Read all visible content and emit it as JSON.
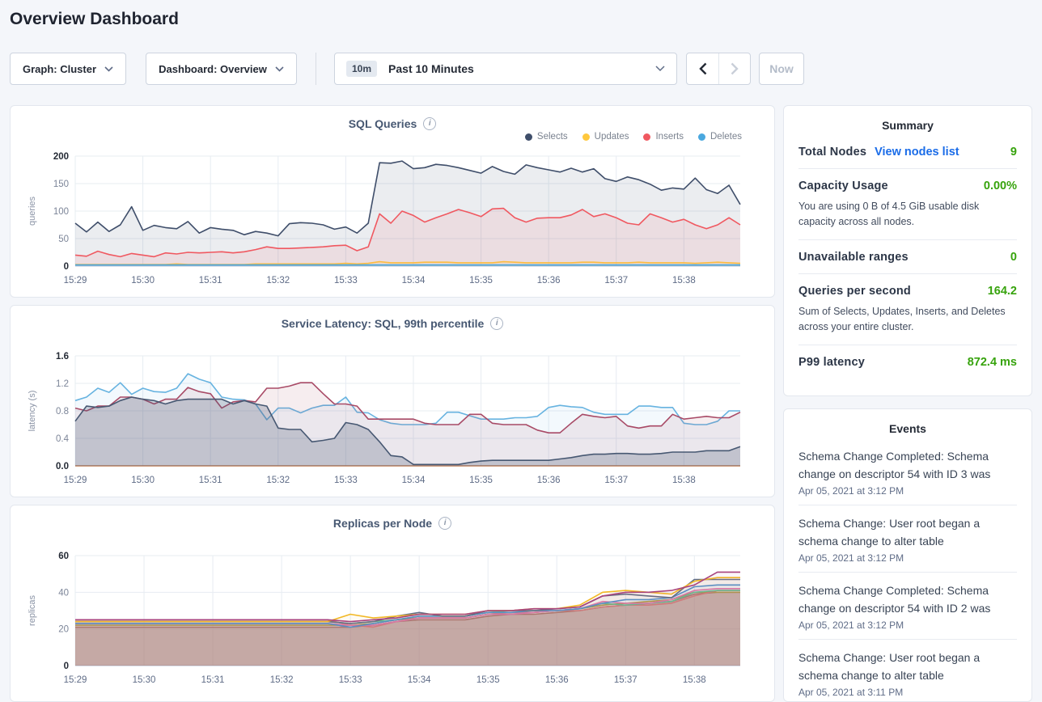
{
  "page_title": "Overview Dashboard",
  "controls": {
    "graph_dropdown": "Graph: Cluster",
    "dashboard_dropdown": "Dashboard: Overview",
    "time_badge": "10m",
    "time_label": "Past 10 Minutes",
    "now_label": "Now"
  },
  "summary": {
    "title": "Summary",
    "rows": {
      "total_nodes": {
        "label": "Total Nodes",
        "link": "View nodes list",
        "value": "9"
      },
      "capacity": {
        "label": "Capacity Usage",
        "value": "0.00%",
        "desc": "You are using 0 B of 4.5 GiB usable disk capacity across all nodes."
      },
      "unavailable": {
        "label": "Unavailable ranges",
        "value": "0"
      },
      "qps": {
        "label": "Queries per second",
        "value": "164.2",
        "desc": "Sum of Selects, Updates, Inserts, and Deletes across your entire cluster."
      },
      "p99": {
        "label": "P99 latency",
        "value": "872.4 ms"
      }
    }
  },
  "events": {
    "title": "Events",
    "items": [
      {
        "text": "Schema Change Completed: Schema change on descriptor 54 with ID 3 was",
        "time": "Apr 05, 2021 at 3:12 PM"
      },
      {
        "text": "Schema Change: User root began a schema change to alter table",
        "time": "Apr 05, 2021 at 3:12 PM"
      },
      {
        "text": "Schema Change Completed: Schema change on descriptor 54 with ID 2 was",
        "time": "Apr 05, 2021 at 3:12 PM"
      },
      {
        "text": "Schema Change: User root began a schema change to alter table",
        "time": "Apr 05, 2021 at 3:11 PM"
      }
    ]
  },
  "chart_data": [
    {
      "type": "area",
      "title": "SQL Queries",
      "ylabel": "queries",
      "ylim": [
        0,
        200
      ],
      "yticks": [
        "0",
        "50",
        "100",
        "150",
        "200"
      ],
      "xticks": [
        "15:29",
        "15:30",
        "15:31",
        "15:32",
        "15:33",
        "15:34",
        "15:35",
        "15:36",
        "15:37",
        "15:38"
      ],
      "tick_every": 6,
      "n": 60,
      "legend": true,
      "series": [
        {
          "name": "Selects",
          "color": "#3f4e6a",
          "fill_opacity": 0.1,
          "values": [
            78,
            62,
            80,
            63,
            75,
            108,
            65,
            74,
            70,
            68,
            81,
            60,
            70,
            67,
            65,
            57,
            63,
            60,
            55,
            77,
            79,
            78,
            75,
            67,
            71,
            60,
            78,
            188,
            187,
            191,
            177,
            179,
            185,
            183,
            179,
            174,
            169,
            181,
            172,
            167,
            184,
            179,
            175,
            171,
            178,
            171,
            177,
            159,
            154,
            162,
            157,
            149,
            138,
            142,
            140,
            160,
            139,
            132,
            147,
            112
          ]
        },
        {
          "name": "Updates",
          "color": "#ffc83d",
          "fill_opacity": 0.12,
          "values": [
            3,
            3,
            3,
            3,
            3,
            3,
            3,
            3,
            3,
            4,
            3,
            3,
            3,
            3,
            3,
            3,
            4,
            4,
            4,
            4,
            4,
            4,
            4,
            4,
            5,
            4,
            5,
            8,
            6,
            6,
            6,
            7,
            7,
            7,
            6,
            6,
            6,
            6,
            8,
            7,
            6,
            6,
            6,
            6,
            6,
            7,
            7,
            6,
            6,
            6,
            7,
            6,
            6,
            6,
            6,
            5,
            6,
            7,
            6,
            5
          ]
        },
        {
          "name": "Inserts",
          "color": "#f05860",
          "fill_opacity": 0.1,
          "values": [
            20,
            18,
            27,
            21,
            17,
            23,
            20,
            17,
            24,
            22,
            25,
            24,
            25,
            26,
            24,
            26,
            30,
            35,
            32,
            32,
            33,
            34,
            35,
            37,
            38,
            28,
            35,
            95,
            78,
            100,
            92,
            80,
            88,
            95,
            103,
            97,
            90,
            104,
            105,
            88,
            80,
            87,
            88,
            88,
            93,
            103,
            90,
            95,
            88,
            78,
            75,
            95,
            88,
            80,
            85,
            75,
            68,
            75,
            88,
            75
          ]
        },
        {
          "name": "Deletes",
          "color": "#4aa8df",
          "fill_opacity": 0.25,
          "values": [
            2,
            2,
            2,
            2,
            2,
            2,
            2,
            2,
            2,
            2,
            2,
            2,
            2,
            2,
            2,
            2,
            2,
            2,
            2,
            2,
            2,
            2,
            2,
            2,
            2,
            2,
            2,
            2,
            2,
            2,
            2,
            2,
            2,
            2,
            2,
            2,
            2,
            2,
            2,
            2,
            2,
            2,
            2,
            2,
            2,
            2,
            2,
            2,
            2,
            2,
            2,
            2,
            2,
            2,
            2,
            2,
            2,
            2,
            2,
            2
          ]
        }
      ]
    },
    {
      "type": "area",
      "title": "Service Latency: SQL, 99th percentile",
      "ylabel": "latency (s)",
      "ylim": [
        0,
        1.6
      ],
      "yticks": [
        "0.0",
        "0.4",
        "0.8",
        "1.2",
        "1.6"
      ],
      "xticks": [
        "15:29",
        "15:30",
        "15:31",
        "15:32",
        "15:33",
        "15:34",
        "15:35",
        "15:36",
        "15:37",
        "15:38"
      ],
      "tick_every": 6,
      "n": 60,
      "legend": false,
      "baseline_color": "#bd7b52",
      "series": [
        {
          "name": "latency-blue",
          "color": "#67b3e0",
          "fill_opacity": 0.08,
          "values": [
            0.95,
            1.0,
            1.13,
            1.07,
            1.21,
            1.04,
            1.13,
            1.08,
            1.07,
            1.13,
            1.34,
            1.26,
            1.21,
            1.0,
            0.97,
            0.96,
            0.9,
            0.67,
            0.84,
            0.84,
            0.77,
            0.84,
            0.88,
            0.88,
            1.0,
            0.78,
            0.77,
            0.67,
            0.62,
            0.6,
            0.6,
            0.6,
            0.62,
            0.78,
            0.78,
            0.73,
            0.68,
            0.68,
            0.68,
            0.7,
            0.7,
            0.72,
            0.85,
            0.88,
            0.86,
            0.85,
            0.78,
            0.75,
            0.75,
            0.75,
            0.87,
            0.87,
            0.85,
            0.85,
            0.62,
            0.6,
            0.6,
            0.65,
            0.8,
            0.8
          ]
        },
        {
          "name": "latency-maroon",
          "color": "#a84a66",
          "fill_opacity": 0.1,
          "values": [
            0.84,
            0.8,
            0.87,
            0.87,
            1.0,
            1.0,
            0.97,
            0.9,
            0.97,
            0.97,
            1.14,
            1.08,
            1.05,
            0.84,
            0.93,
            0.95,
            0.93,
            1.13,
            1.13,
            1.16,
            1.21,
            1.21,
            1.05,
            0.9,
            0.9,
            0.87,
            0.68,
            0.68,
            0.68,
            0.68,
            0.68,
            0.62,
            0.6,
            0.6,
            0.6,
            0.75,
            0.75,
            0.62,
            0.6,
            0.6,
            0.6,
            0.52,
            0.48,
            0.48,
            0.62,
            0.75,
            0.72,
            0.7,
            0.72,
            0.58,
            0.55,
            0.58,
            0.58,
            0.75,
            0.68,
            0.7,
            0.72,
            0.7,
            0.7,
            0.78
          ]
        },
        {
          "name": "latency-navy",
          "color": "#475872",
          "fill_opacity": 0.25,
          "values": [
            0.65,
            0.87,
            0.85,
            0.87,
            0.95,
            1.0,
            0.97,
            0.95,
            0.9,
            0.95,
            0.97,
            0.97,
            0.97,
            0.97,
            0.9,
            0.95,
            0.9,
            0.87,
            0.55,
            0.53,
            0.53,
            0.35,
            0.37,
            0.4,
            0.63,
            0.6,
            0.53,
            0.35,
            0.15,
            0.13,
            0.02,
            0.02,
            0.02,
            0.02,
            0.02,
            0.05,
            0.07,
            0.08,
            0.08,
            0.08,
            0.08,
            0.08,
            0.08,
            0.1,
            0.12,
            0.15,
            0.17,
            0.17,
            0.18,
            0.18,
            0.17,
            0.17,
            0.18,
            0.2,
            0.2,
            0.2,
            0.22,
            0.22,
            0.22,
            0.28
          ]
        }
      ]
    },
    {
      "type": "area",
      "title": "Replicas per Node",
      "ylabel": "replicas",
      "ylim": [
        0,
        60
      ],
      "yticks": [
        "0",
        "20",
        "40",
        "60"
      ],
      "xticks": [
        "15:29",
        "15:30",
        "15:31",
        "15:32",
        "15:33",
        "15:34",
        "15:35",
        "15:36",
        "15:37",
        "15:38"
      ],
      "tick_every": 3,
      "n": 30,
      "legend": false,
      "series": [
        {
          "name": "node-brown",
          "color": "#b2726b",
          "fill_opacity": 0.45,
          "values": [
            21,
            21,
            21,
            21,
            21,
            21,
            21,
            21,
            21,
            21,
            21,
            21,
            21,
            22,
            24,
            25,
            25,
            25,
            27,
            28,
            28,
            29,
            30,
            32,
            33,
            34,
            35,
            39,
            40,
            40
          ]
        },
        {
          "name": "node-olive",
          "color": "#b59a3d",
          "fill_opacity": 0.05,
          "values": [
            22,
            22,
            22,
            22,
            22,
            22,
            22,
            22,
            22,
            22,
            22,
            22,
            22,
            23,
            25,
            26,
            26,
            26,
            28,
            29,
            29,
            30,
            31,
            33,
            34,
            35,
            36,
            40,
            40,
            40
          ]
        },
        {
          "name": "node-salmon",
          "color": "#e57a7a",
          "fill_opacity": 0.05,
          "values": [
            25,
            25,
            25,
            25,
            25,
            25,
            25,
            25,
            25,
            25,
            25,
            25,
            22,
            21,
            24,
            26,
            26,
            26,
            28,
            29,
            29,
            30,
            30,
            32,
            33,
            33,
            34,
            38,
            41,
            41
          ]
        },
        {
          "name": "node-green",
          "color": "#5ec795",
          "fill_opacity": 0.05,
          "values": [
            24,
            24,
            24,
            24,
            24,
            24,
            24,
            24,
            24,
            24,
            24,
            24,
            23,
            24,
            25,
            27,
            27,
            27,
            29,
            30,
            30,
            30,
            31,
            34,
            33,
            34,
            35,
            40,
            41,
            41
          ]
        },
        {
          "name": "node-pink",
          "color": "#e87ab0",
          "fill_opacity": 0.05,
          "values": [
            23,
            23,
            23,
            23,
            23,
            23,
            23,
            23,
            23,
            23,
            23,
            23,
            22,
            22,
            24,
            26,
            26,
            26,
            28,
            28,
            29,
            30,
            31,
            35,
            34,
            34,
            36,
            41,
            42,
            42
          ]
        },
        {
          "name": "node-blue",
          "color": "#5094d4",
          "fill_opacity": 0.05,
          "values": [
            23,
            23,
            23,
            23,
            23,
            23,
            23,
            23,
            23,
            23,
            23,
            23,
            21,
            23,
            25,
            27,
            27,
            27,
            29,
            29,
            30,
            30,
            31,
            34,
            36,
            36,
            37,
            43,
            44,
            44
          ]
        },
        {
          "name": "node-gray",
          "color": "#5f6c87",
          "fill_opacity": 0.05,
          "values": [
            24,
            24,
            24,
            24,
            24,
            24,
            24,
            24,
            24,
            24,
            24,
            24,
            23,
            24,
            27,
            29,
            27,
            27,
            30,
            30,
            30,
            31,
            32,
            38,
            39,
            38,
            37,
            47,
            47,
            47
          ]
        },
        {
          "name": "node-yellow",
          "color": "#f2b824",
          "fill_opacity": 0.05,
          "values": [
            24,
            24,
            24,
            24,
            24,
            24,
            24,
            24,
            24,
            24,
            24,
            24,
            28,
            26,
            27,
            28,
            28,
            28,
            30,
            30,
            31,
            31,
            33,
            40,
            41,
            40,
            39,
            46,
            48,
            48
          ]
        },
        {
          "name": "node-purple",
          "color": "#a8437d",
          "fill_opacity": 0.05,
          "values": [
            25,
            25,
            25,
            25,
            25,
            25,
            25,
            25,
            25,
            25,
            25,
            25,
            24,
            25,
            26,
            28,
            28,
            28,
            30,
            30,
            31,
            31,
            32,
            38,
            40,
            40,
            41,
            44,
            51,
            51
          ]
        }
      ]
    }
  ]
}
